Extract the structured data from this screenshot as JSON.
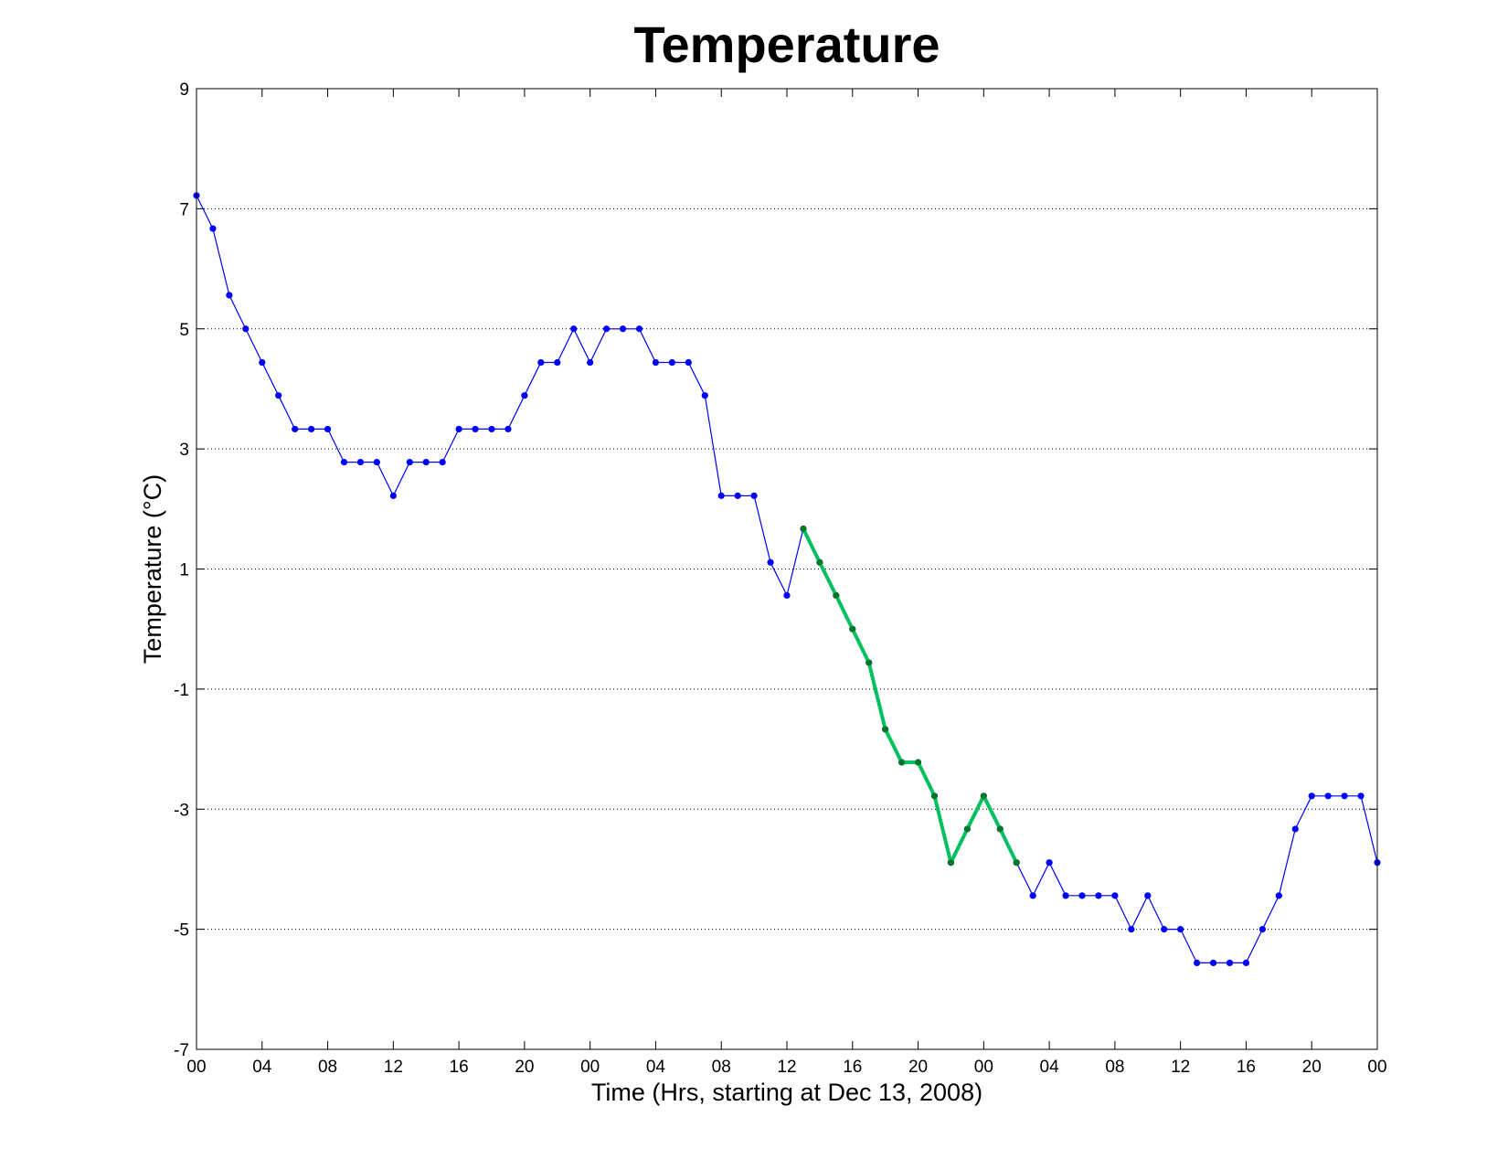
{
  "chart_data": {
    "type": "line",
    "title": "Temperature",
    "xlabel": "Time (Hrs, starting at Dec 13, 2008)",
    "ylabel": "Temperature (°C)",
    "ylim": [
      -7,
      9
    ],
    "xlim": [
      0,
      72
    ],
    "yticks": [
      -7,
      -5,
      -3,
      -1,
      1,
      3,
      5,
      7,
      9
    ],
    "ytick_labels": [
      "-7",
      "-5",
      "-3",
      "-1",
      "1",
      "3",
      "5",
      "7",
      "9"
    ],
    "xticks": [
      0,
      4,
      8,
      12,
      16,
      20,
      24,
      28,
      32,
      36,
      40,
      44,
      48,
      52,
      56,
      60,
      64,
      68,
      72
    ],
    "xtick_labels": [
      "00",
      "04",
      "08",
      "12",
      "16",
      "20",
      "00",
      "04",
      "08",
      "12",
      "16",
      "20",
      "00",
      "04",
      "08",
      "12",
      "16",
      "20",
      "00"
    ],
    "grid": "horizontal dotted",
    "series": [
      {
        "color": "#0000ff",
        "marker_color": "#0000ff",
        "x": [
          0,
          1,
          2,
          3,
          4,
          5,
          6,
          7,
          8,
          9,
          10,
          11,
          12,
          13,
          14,
          15,
          16,
          17,
          18,
          19,
          20,
          21,
          22,
          23,
          24,
          25,
          26,
          27,
          28,
          29,
          30,
          31,
          32,
          33,
          34,
          35,
          36,
          37,
          38,
          39,
          40,
          41,
          42,
          43,
          44,
          45,
          46,
          47,
          48,
          49,
          50,
          51,
          52,
          53,
          54,
          55,
          56,
          57,
          58,
          59,
          60,
          61,
          62,
          63,
          64,
          65,
          66,
          67,
          68,
          69,
          70,
          71,
          72
        ],
        "y": [
          7.22,
          6.67,
          5.56,
          5.0,
          4.44,
          3.89,
          3.33,
          3.33,
          3.33,
          2.78,
          2.78,
          2.78,
          2.22,
          2.78,
          2.78,
          2.78,
          3.33,
          3.33,
          3.33,
          3.33,
          3.89,
          4.44,
          4.44,
          5.0,
          4.44,
          5.0,
          5.0,
          5.0,
          4.44,
          4.44,
          4.44,
          3.89,
          2.22,
          2.22,
          2.22,
          1.11,
          0.56,
          1.67,
          1.11,
          0.56,
          0.0,
          -0.56,
          -1.67,
          -2.22,
          -2.22,
          -2.78,
          -3.89,
          -3.33,
          -2.78,
          -3.33,
          -3.89,
          -4.44,
          -3.89,
          -4.44,
          -4.44,
          -4.44,
          -4.44,
          -5.0,
          -4.44,
          -5.0,
          -5.0,
          -5.56,
          -5.56,
          -5.56,
          -5.56,
          -5.0,
          -4.44,
          -3.33,
          -2.78,
          -2.78,
          -2.78,
          -2.78,
          -3.89
        ]
      },
      {
        "color": "#00c060",
        "marker_color": "#007a1f",
        "x": [
          37,
          38,
          39,
          40,
          41,
          42,
          43,
          44,
          45,
          46,
          47,
          48,
          49,
          50
        ],
        "y": [
          1.67,
          1.11,
          0.56,
          0.0,
          -0.56,
          -1.67,
          -2.22,
          -2.22,
          -2.78,
          -3.89,
          -3.33,
          -2.78,
          -3.33,
          -3.89
        ]
      }
    ]
  }
}
